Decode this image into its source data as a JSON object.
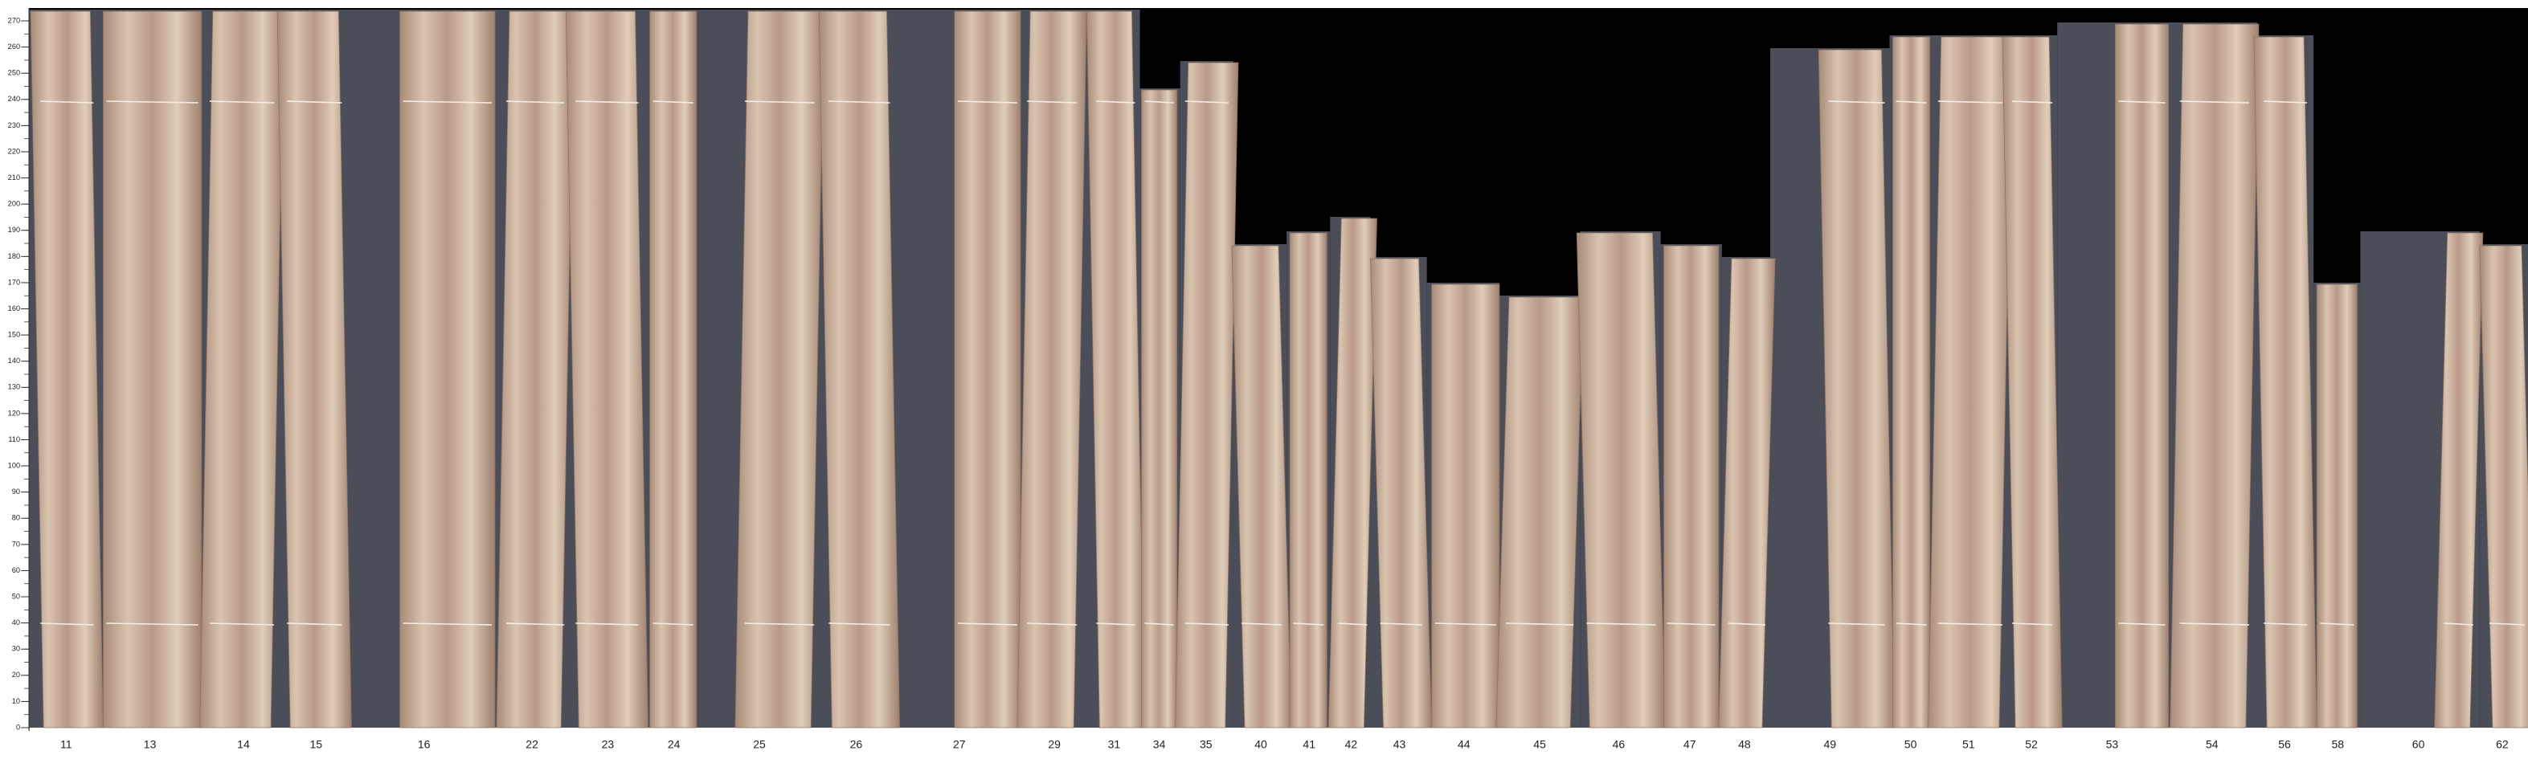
{
  "ruler": {
    "ticks": [
      0,
      10,
      20,
      30,
      40,
      50,
      60,
      70,
      80,
      90,
      100,
      110,
      120,
      130,
      140,
      150,
      160,
      170,
      180,
      190,
      200,
      210,
      220,
      230,
      240,
      250,
      260,
      270
    ]
  },
  "labels": [
    "11",
    "13",
    "14",
    "15",
    "16",
    "22",
    "23",
    "24",
    "25",
    "26",
    "27",
    "29",
    "31",
    "34",
    "35",
    "40",
    "41",
    "42",
    "43",
    "44",
    "45",
    "46",
    "47",
    "48",
    "49",
    "50",
    "51",
    "52",
    "53",
    "54",
    "56",
    "58",
    "60",
    "62"
  ]
}
